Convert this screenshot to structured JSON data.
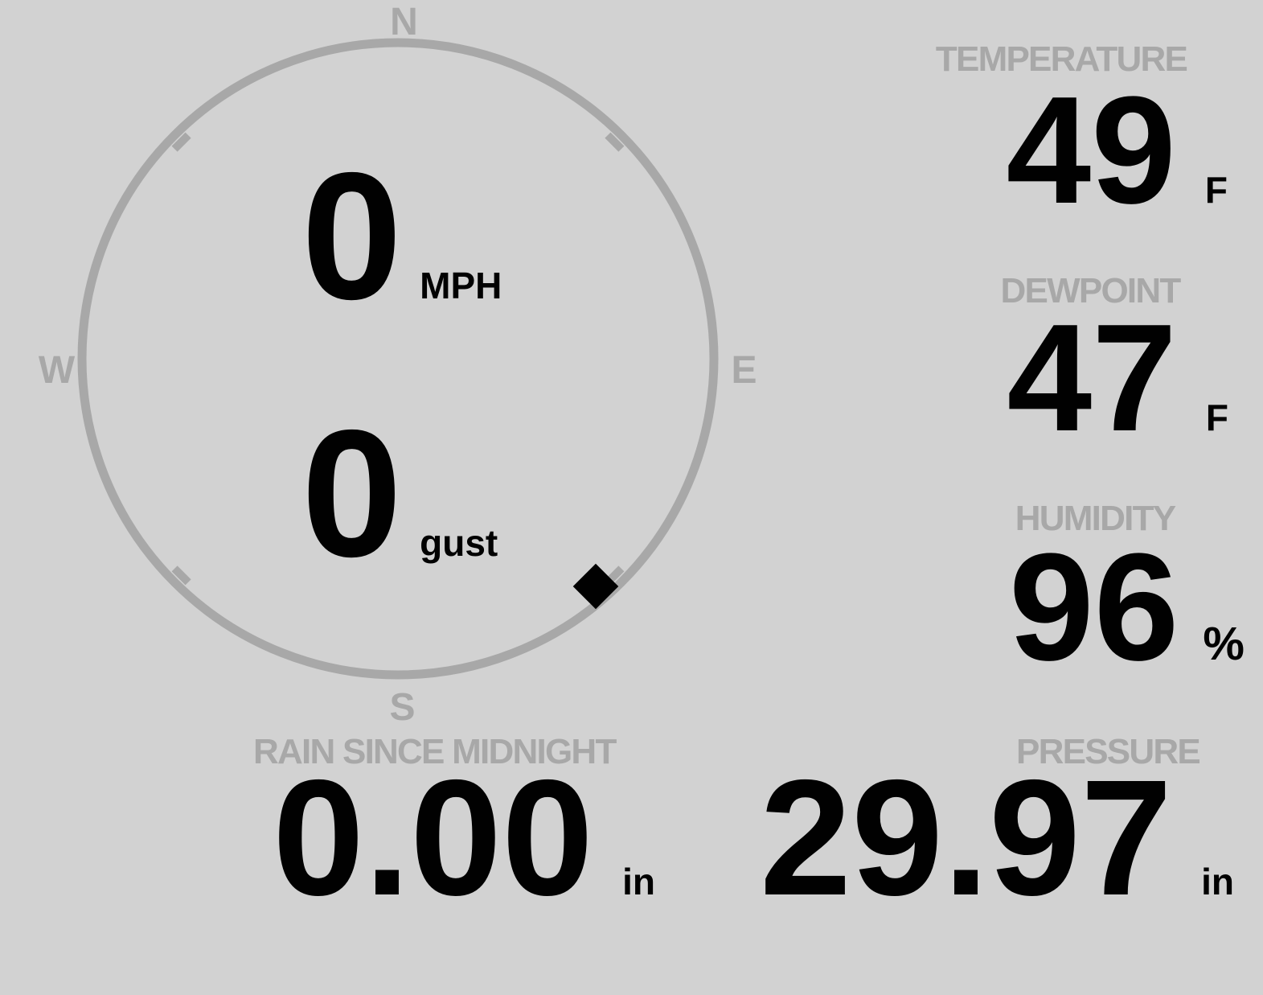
{
  "colors": {
    "background": "#d2d2d2",
    "muted": "#a8a8a8",
    "text": "#010101"
  },
  "wind": {
    "speed": "0",
    "speed_unit": "MPH",
    "gust": "0",
    "gust_unit": "gust",
    "direction_degrees": 139,
    "compass": {
      "north": "N",
      "east": "E",
      "south": "S",
      "west": "W"
    }
  },
  "metrics": {
    "temperature": {
      "label": "TEMPERATURE",
      "value": "49",
      "unit": "F"
    },
    "dewpoint": {
      "label": "DEWPOINT",
      "value": "47",
      "unit": "F"
    },
    "humidity": {
      "label": "HUMIDITY",
      "value": "96",
      "unit": "%"
    },
    "rain": {
      "label": "RAIN SINCE MIDNIGHT",
      "value": "0.00",
      "unit": "in"
    },
    "pressure": {
      "label": "PRESSURE",
      "value": "29.97",
      "unit": "in"
    }
  }
}
